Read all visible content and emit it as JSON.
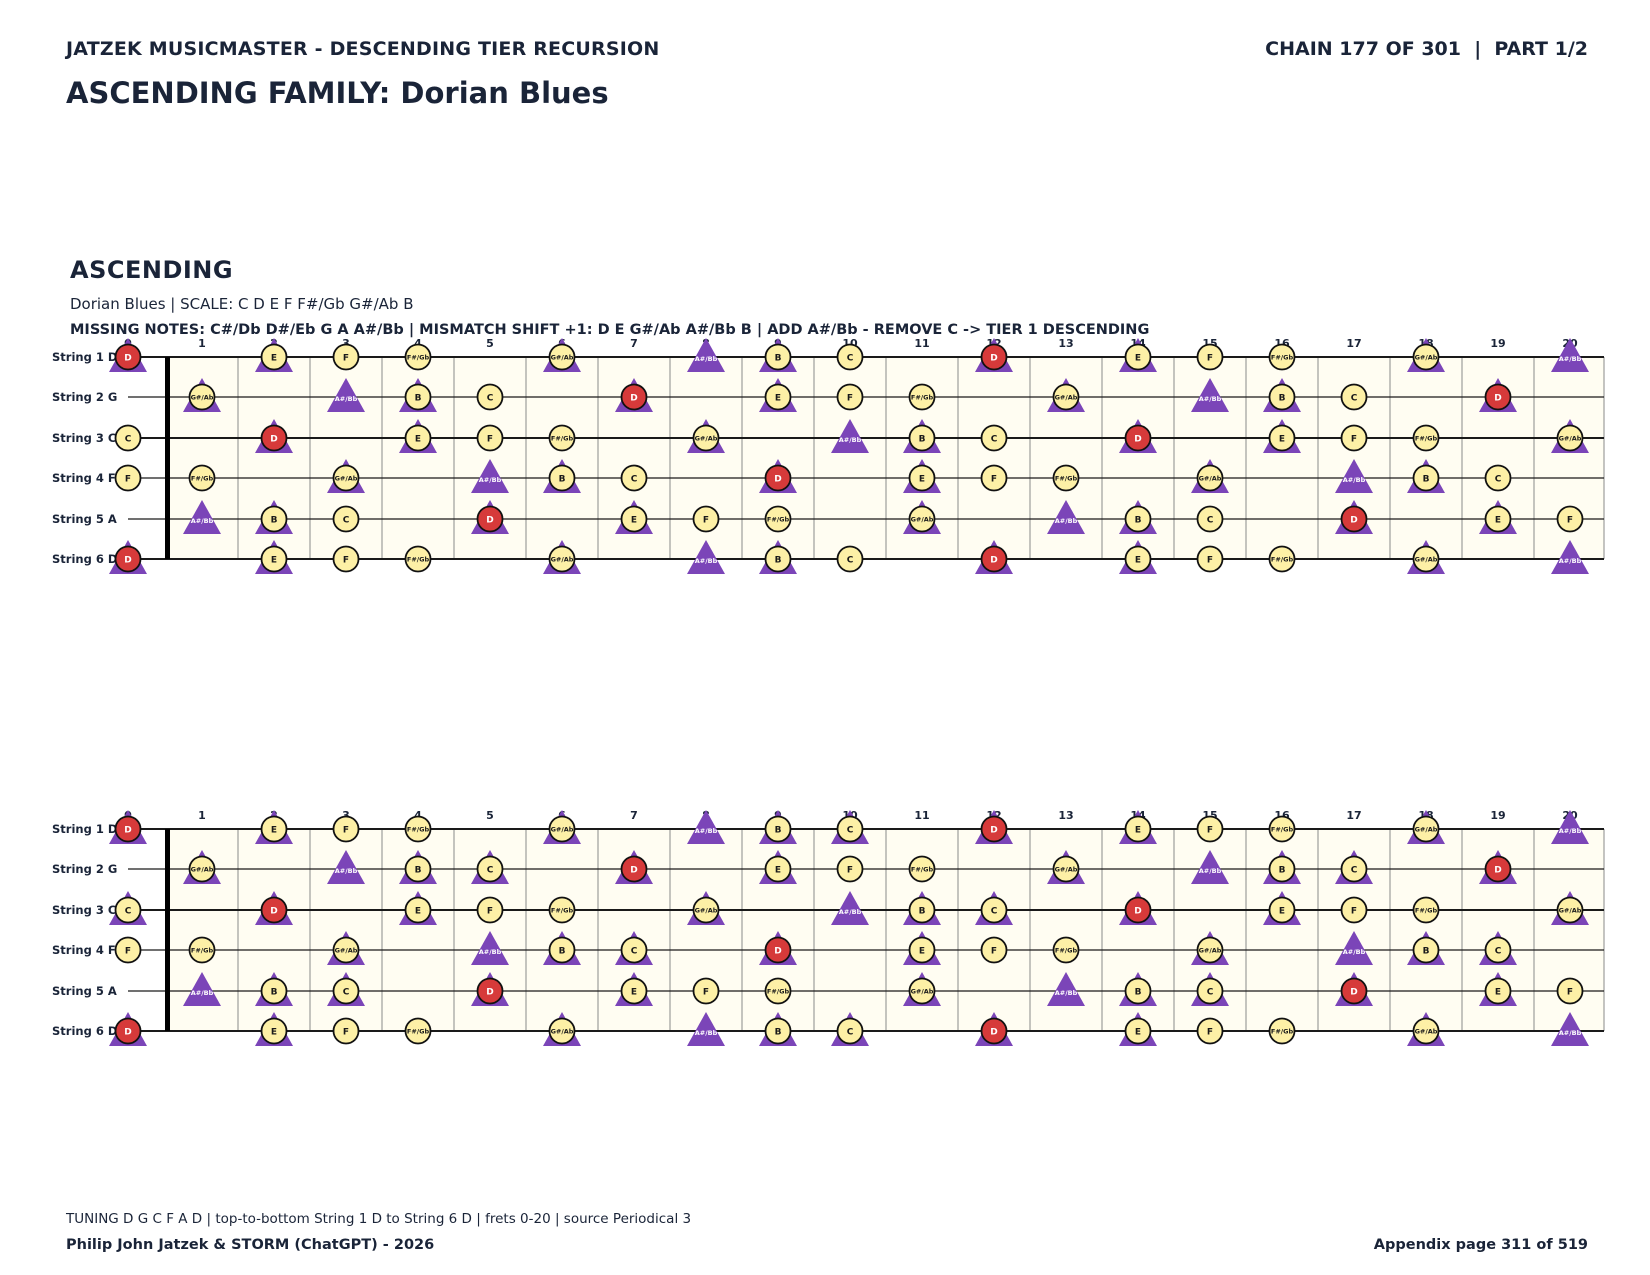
{
  "header": {
    "left": "JATZEK MUSICMASTER - DESCENDING TIER RECURSION",
    "right": "CHAIN 177 OF 301  |  PART 1/2"
  },
  "family_title": "ASCENDING FAMILY: Dorian Blues",
  "section": {
    "title": "ASCENDING",
    "subtitle": "Dorian Blues  |  SCALE: C D E F F#/Gb G#/Ab B",
    "missing": "MISSING NOTES: C#/Db D#/Eb G A A#/Bb  |  MISMATCH SHIFT +1: D E G#/Ab A#/Bb B  |  ADD A#/Bb - REMOVE C -> TIER 1 DESCENDING"
  },
  "colors": {
    "root": "#d63a3a",
    "note": "#fdf0a6",
    "triangle": "#7b45b8",
    "board": "#fffdf2",
    "text": "#1a2438"
  },
  "fretboard": {
    "fret_numbers": [
      "0",
      "1",
      "2",
      "3",
      "4",
      "5",
      "6",
      "7",
      "8",
      "9",
      "10",
      "11",
      "12",
      "13",
      "14",
      "15",
      "16",
      "17",
      "18",
      "19",
      "20"
    ],
    "string_labels": [
      "String 1 D",
      "String 2 G",
      "String 3 C",
      "String 4 F",
      "String 5 A",
      "String 6 D"
    ],
    "string_roots": [
      "D",
      "G",
      "C",
      "F",
      "A",
      "D"
    ],
    "root": "D",
    "scale": [
      "C",
      "D",
      "E",
      "F",
      "F#/Gb",
      "G#/Ab",
      "B"
    ],
    "diagram1_triangles": [
      "D",
      "E",
      "G#/Ab",
      "A#/Bb",
      "B"
    ],
    "diagram2_triangles": [
      "D",
      "E",
      "G#/Ab",
      "A#/Bb",
      "B",
      "C"
    ]
  },
  "footer": {
    "tuning": "TUNING D G C F A D | top-to-bottom String 1 D to String 6 D | frets 0-20 | source Periodical 3",
    "authors": "Philip John Jatzek & STORM (ChatGPT) - 2026",
    "page": "Appendix page 311 of 519"
  }
}
